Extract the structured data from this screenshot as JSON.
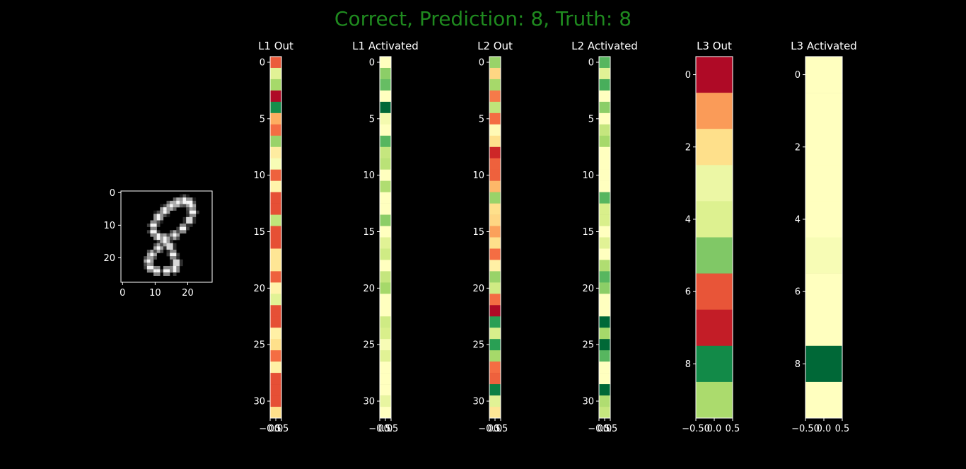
{
  "title": "Correct, Prediction: 8, Truth: 8",
  "title_color": "#1f8a1f",
  "colormap": "RdYlGn",
  "chart_data": [
    {
      "type": "heatmap",
      "name": "input-image",
      "title": "",
      "colormap": "gray",
      "rows": 28,
      "cols": 28,
      "xticks": [
        0,
        10,
        20
      ],
      "yticks": [
        0,
        10,
        20
      ],
      "strokes": [
        {
          "cx": 20.5,
          "cy": 3.0,
          "w": 1.5
        },
        {
          "cx": 19.0,
          "cy": 2.5,
          "w": 1.5
        },
        {
          "cx": 17.0,
          "cy": 3.0,
          "w": 1.5
        },
        {
          "cx": 15.0,
          "cy": 4.0,
          "w": 1.5
        },
        {
          "cx": 13.0,
          "cy": 5.5,
          "w": 1.5
        },
        {
          "cx": 11.0,
          "cy": 7.5,
          "w": 1.5
        },
        {
          "cx": 9.5,
          "cy": 10.0,
          "w": 1.4
        },
        {
          "cx": 9.5,
          "cy": 12.0,
          "w": 1.4
        },
        {
          "cx": 11.0,
          "cy": 13.5,
          "w": 1.4
        },
        {
          "cx": 13.0,
          "cy": 14.0,
          "w": 1.4
        },
        {
          "cx": 16.0,
          "cy": 13.0,
          "w": 1.4
        },
        {
          "cx": 18.5,
          "cy": 11.0,
          "w": 1.4
        },
        {
          "cx": 20.5,
          "cy": 8.5,
          "w": 1.4
        },
        {
          "cx": 21.5,
          "cy": 6.0,
          "w": 1.4
        },
        {
          "cx": 21.0,
          "cy": 4.0,
          "w": 1.4
        },
        {
          "cx": 13.0,
          "cy": 15.0,
          "w": 1.4
        },
        {
          "cx": 11.0,
          "cy": 17.0,
          "w": 1.4
        },
        {
          "cx": 9.0,
          "cy": 19.0,
          "w": 1.4
        },
        {
          "cx": 8.0,
          "cy": 21.0,
          "w": 1.4
        },
        {
          "cx": 8.5,
          "cy": 23.0,
          "w": 1.4
        },
        {
          "cx": 10.5,
          "cy": 24.0,
          "w": 1.4
        },
        {
          "cx": 13.5,
          "cy": 24.0,
          "w": 1.4
        },
        {
          "cx": 16.0,
          "cy": 23.5,
          "w": 1.4
        },
        {
          "cx": 16.5,
          "cy": 21.5,
          "w": 1.4
        },
        {
          "cx": 15.5,
          "cy": 19.0,
          "w": 1.4
        },
        {
          "cx": 14.5,
          "cy": 16.5,
          "w": 1.4
        }
      ]
    },
    {
      "type": "heatmap",
      "name": "l1-out",
      "title": "L1 Out",
      "xticks": [
        "−0.5",
        "0.0",
        "0.5"
      ],
      "yticks": [
        0,
        5,
        10,
        15,
        20,
        25,
        30
      ],
      "values": [
        0.17,
        0.58,
        0.7,
        0.02,
        0.92,
        0.3,
        0.2,
        0.72,
        0.44,
        0.52,
        0.18,
        0.46,
        0.15,
        0.15,
        0.65,
        0.15,
        0.15,
        0.42,
        0.42,
        0.18,
        0.46,
        0.58,
        0.15,
        0.15,
        0.45,
        0.4,
        0.2,
        0.45,
        0.15,
        0.15,
        0.15,
        0.4
      ]
    },
    {
      "type": "heatmap",
      "name": "l1-activated",
      "title": "L1 Activated",
      "xticks": [
        "−0.5",
        "0.0",
        "0.5"
      ],
      "yticks": [
        0,
        5,
        10,
        15,
        20,
        25,
        30
      ],
      "values": [
        0.5,
        0.74,
        0.8,
        0.5,
        1.0,
        0.53,
        0.5,
        0.82,
        0.64,
        0.66,
        0.5,
        0.68,
        0.5,
        0.5,
        0.74,
        0.5,
        0.58,
        0.62,
        0.5,
        0.64,
        0.7,
        0.5,
        0.5,
        0.62,
        0.6,
        0.52,
        0.58,
        0.5,
        0.5,
        0.5,
        0.56,
        0.5
      ]
    },
    {
      "type": "heatmap",
      "name": "l2-out",
      "title": "L2 Out",
      "xticks": [
        "−0.5",
        "0.0",
        "0.5"
      ],
      "yticks": [
        0,
        5,
        10,
        15,
        20,
        25,
        30
      ],
      "values": [
        0.72,
        0.38,
        0.7,
        0.22,
        0.65,
        0.2,
        0.48,
        0.4,
        0.08,
        0.18,
        0.18,
        0.32,
        0.72,
        0.4,
        0.38,
        0.28,
        0.4,
        0.2,
        0.45,
        0.72,
        0.62,
        0.2,
        0.02,
        0.88,
        0.6,
        0.88,
        0.7,
        0.2,
        0.18,
        0.95,
        0.58,
        0.42
      ]
    },
    {
      "type": "heatmap",
      "name": "l2-activated",
      "title": "L2 Activated",
      "xticks": [
        "−0.5",
        "0.0",
        "0.5"
      ],
      "yticks": [
        0,
        5,
        10,
        15,
        20,
        25,
        30
      ],
      "values": [
        0.82,
        0.58,
        0.84,
        0.5,
        0.74,
        0.5,
        0.64,
        0.7,
        0.5,
        0.5,
        0.5,
        0.5,
        0.82,
        0.6,
        0.6,
        0.5,
        0.58,
        0.5,
        0.68,
        0.82,
        0.74,
        0.5,
        0.5,
        1.0,
        0.7,
        1.0,
        0.82,
        0.5,
        0.5,
        1.0,
        0.68,
        0.64
      ]
    },
    {
      "type": "heatmap",
      "name": "l3-out",
      "title": "L3 Out",
      "xticks": [
        "−0.50",
        "0.0",
        "0.5"
      ],
      "yticks": [
        0,
        2,
        4,
        6,
        8
      ],
      "values": [
        0.02,
        0.27,
        0.4,
        0.55,
        0.59,
        0.76,
        0.16,
        0.06,
        0.93,
        0.69
      ]
    },
    {
      "type": "heatmap",
      "name": "l3-activated",
      "title": "L3 Activated",
      "xticks": [
        "−0.50",
        "0.0",
        "0.5"
      ],
      "yticks": [
        0,
        2,
        4,
        6,
        8
      ],
      "values": [
        0.5,
        0.5,
        0.5,
        0.5,
        0.5,
        0.52,
        0.5,
        0.5,
        1.0,
        0.5
      ]
    }
  ]
}
